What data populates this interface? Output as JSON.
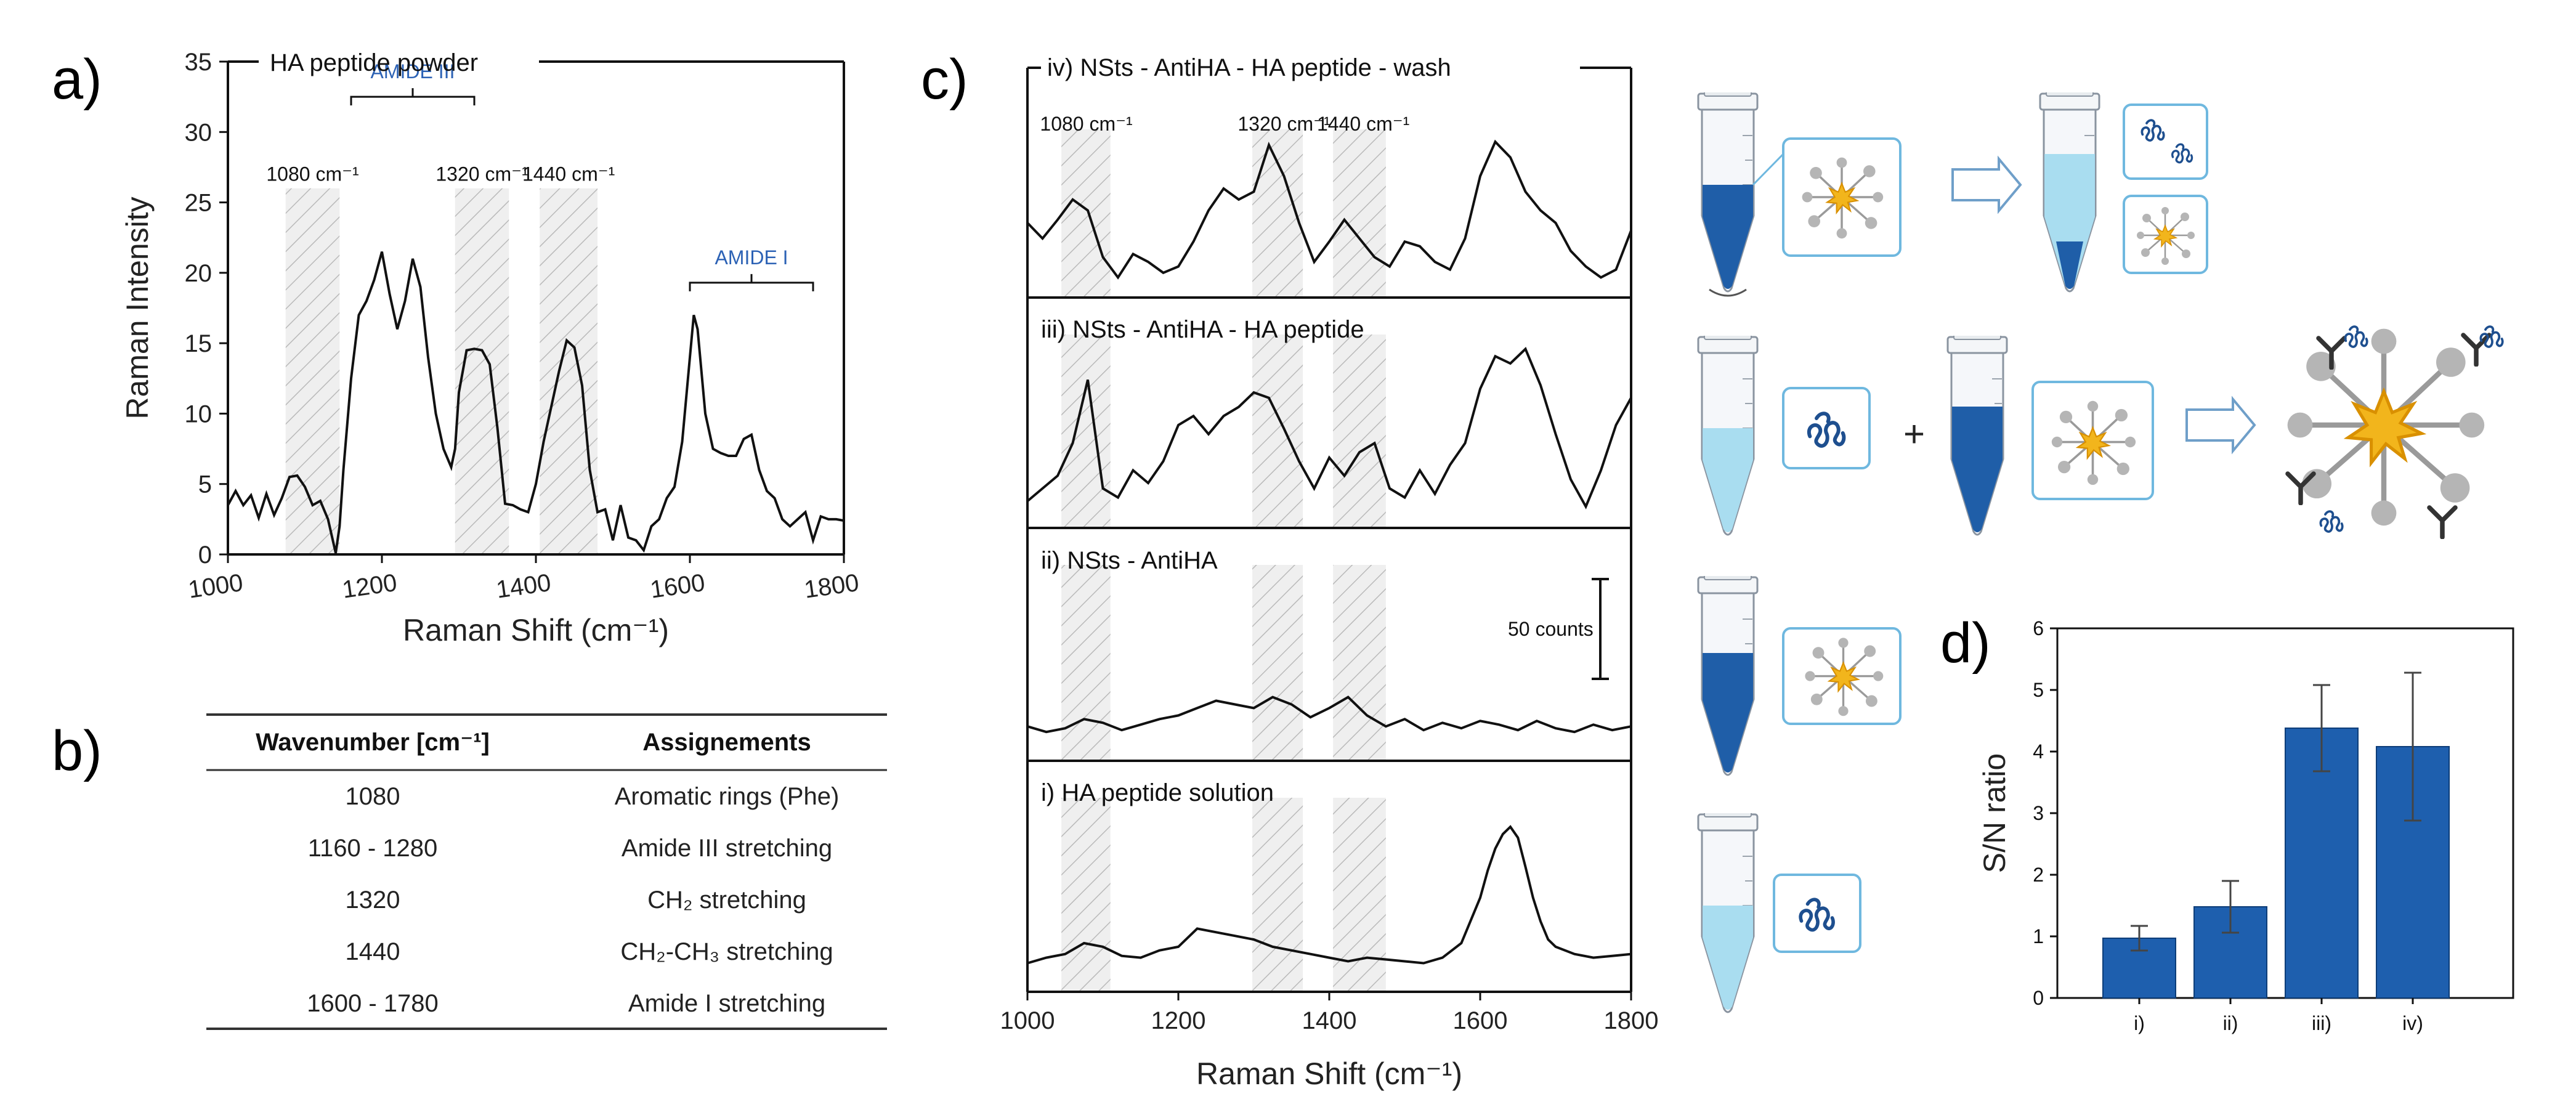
{
  "panels": {
    "a": "a)",
    "b": "b)",
    "c": "c)",
    "d": "d)"
  },
  "chart_data": [
    {
      "id": "a",
      "type": "line",
      "title": "HA peptide powder",
      "xlabel": "Raman Shift (cm⁻¹)",
      "ylabel": "Raman Intensity",
      "xlim": [
        1000,
        1800
      ],
      "ylim": [
        0,
        35
      ],
      "xticks": [
        1000,
        1200,
        1400,
        1600,
        1800
      ],
      "yticks": [
        0,
        5,
        10,
        15,
        20,
        25,
        30,
        35
      ],
      "bands": [
        {
          "label": "1080 cm⁻¹",
          "x0": 1075,
          "x1": 1145
        },
        {
          "label": "1320 cm⁻¹",
          "x0": 1295,
          "x1": 1365
        },
        {
          "label": "1440 cm⁻¹",
          "x0": 1405,
          "x1": 1480
        }
      ],
      "annotations": [
        {
          "label": "AMIDE III",
          "x0": 1160,
          "x1": 1320
        },
        {
          "label": "AMIDE I",
          "x0": 1600,
          "x1": 1760
        }
      ],
      "series": [
        {
          "name": "HA peptide powder",
          "x": [
            1000,
            1010,
            1020,
            1030,
            1040,
            1050,
            1060,
            1070,
            1080,
            1090,
            1100,
            1110,
            1120,
            1130,
            1140,
            1145,
            1150,
            1160,
            1170,
            1180,
            1190,
            1200,
            1210,
            1220,
            1230,
            1240,
            1250,
            1260,
            1270,
            1280,
            1290,
            1295,
            1300,
            1310,
            1320,
            1330,
            1340,
            1350,
            1360,
            1370,
            1380,
            1390,
            1400,
            1410,
            1420,
            1430,
            1440,
            1450,
            1460,
            1470,
            1480,
            1490,
            1500,
            1510,
            1520,
            1530,
            1540,
            1550,
            1560,
            1570,
            1580,
            1590,
            1600,
            1605,
            1610,
            1620,
            1630,
            1640,
            1650,
            1660,
            1670,
            1680,
            1690,
            1700,
            1710,
            1720,
            1730,
            1740,
            1750,
            1760,
            1770,
            1780,
            1790,
            1800
          ],
          "y": [
            3.5,
            4.5,
            3.5,
            4.2,
            2.6,
            4.3,
            2.8,
            4.0,
            5.5,
            5.6,
            4.8,
            3.5,
            3.8,
            2.5,
            0.1,
            2.0,
            6.0,
            12.5,
            17.0,
            18.0,
            19.5,
            21.5,
            18.5,
            16.0,
            18.0,
            21.0,
            19.0,
            14.0,
            10.0,
            7.5,
            6.2,
            7.5,
            11.5,
            14.5,
            14.6,
            14.5,
            13.5,
            9.0,
            3.6,
            3.5,
            3.2,
            3.0,
            5.0,
            8.0,
            10.5,
            13.0,
            15.2,
            14.7,
            12.0,
            6.0,
            3.0,
            3.2,
            1.0,
            3.5,
            1.2,
            1.0,
            0.3,
            2.0,
            2.5,
            4.0,
            4.8,
            8.0,
            14.0,
            17.0,
            16.0,
            10.0,
            7.5,
            7.2,
            7.0,
            7.0,
            8.2,
            8.5,
            6.0,
            4.5,
            4.0,
            2.5,
            2.0,
            2.5,
            3.0,
            1.0,
            2.7,
            2.5,
            2.5,
            2.4
          ]
        }
      ]
    },
    {
      "id": "c",
      "type": "line",
      "xlabel": "Raman Shift (cm⁻¹)",
      "xlim": [
        1000,
        1800
      ],
      "xticks": [
        1000,
        1200,
        1400,
        1600,
        1800
      ],
      "band_labels": [
        "1080 cm⁻¹",
        "1320 cm⁻¹",
        "1440 cm⁻¹"
      ],
      "scale_bar": "50 counts",
      "stack": [
        {
          "name": "iv) NSts - AntiHA - HA peptide - wash",
          "x": [
            1000,
            1020,
            1040,
            1060,
            1080,
            1100,
            1120,
            1140,
            1160,
            1180,
            1200,
            1220,
            1240,
            1260,
            1280,
            1300,
            1320,
            1340,
            1360,
            1380,
            1400,
            1420,
            1440,
            1460,
            1480,
            1500,
            1520,
            1540,
            1560,
            1580,
            1600,
            1620,
            1640,
            1660,
            1680,
            1700,
            1720,
            1740,
            1760,
            1780,
            1800
          ],
          "y": [
            0.4,
            0.3,
            0.42,
            0.55,
            0.48,
            0.18,
            0.05,
            0.2,
            0.15,
            0.08,
            0.12,
            0.28,
            0.48,
            0.62,
            0.55,
            0.6,
            0.9,
            0.7,
            0.4,
            0.15,
            0.28,
            0.42,
            0.3,
            0.18,
            0.12,
            0.28,
            0.25,
            0.15,
            0.1,
            0.3,
            0.7,
            0.92,
            0.82,
            0.6,
            0.48,
            0.4,
            0.22,
            0.12,
            0.05,
            0.1,
            0.35
          ]
        },
        {
          "name": "iii) NSts - AntiHA - HA peptide",
          "x": [
            1000,
            1020,
            1040,
            1060,
            1080,
            1100,
            1120,
            1140,
            1160,
            1180,
            1200,
            1220,
            1240,
            1260,
            1280,
            1300,
            1320,
            1340,
            1360,
            1380,
            1400,
            1420,
            1440,
            1460,
            1480,
            1500,
            1520,
            1540,
            1560,
            1580,
            1600,
            1620,
            1640,
            1660,
            1680,
            1700,
            1720,
            1740,
            1760,
            1780,
            1800
          ],
          "y": [
            0.08,
            0.15,
            0.22,
            0.4,
            0.75,
            0.15,
            0.1,
            0.25,
            0.18,
            0.3,
            0.5,
            0.55,
            0.45,
            0.55,
            0.6,
            0.68,
            0.65,
            0.48,
            0.3,
            0.15,
            0.32,
            0.22,
            0.35,
            0.4,
            0.15,
            0.1,
            0.25,
            0.12,
            0.28,
            0.4,
            0.7,
            0.88,
            0.84,
            0.92,
            0.72,
            0.45,
            0.2,
            0.05,
            0.25,
            0.5,
            0.65
          ]
        },
        {
          "name": "ii) NSts - AntiHA",
          "x": [
            1000,
            1025,
            1050,
            1075,
            1100,
            1125,
            1150,
            1175,
            1200,
            1225,
            1250,
            1275,
            1300,
            1325,
            1350,
            1375,
            1400,
            1425,
            1450,
            1475,
            1500,
            1525,
            1550,
            1575,
            1600,
            1625,
            1650,
            1675,
            1700,
            1725,
            1750,
            1775,
            1800
          ],
          "y": [
            0.12,
            0.09,
            0.11,
            0.16,
            0.14,
            0.1,
            0.13,
            0.16,
            0.18,
            0.22,
            0.26,
            0.24,
            0.22,
            0.28,
            0.24,
            0.17,
            0.22,
            0.28,
            0.18,
            0.12,
            0.16,
            0.1,
            0.14,
            0.11,
            0.15,
            0.13,
            0.1,
            0.15,
            0.11,
            0.09,
            0.13,
            0.1,
            0.12
          ]
        },
        {
          "name": "i) HA peptide solution",
          "x": [
            1000,
            1025,
            1050,
            1075,
            1100,
            1125,
            1150,
            1175,
            1200,
            1225,
            1250,
            1275,
            1300,
            1325,
            1350,
            1375,
            1400,
            1425,
            1450,
            1475,
            1500,
            1525,
            1550,
            1575,
            1600,
            1610,
            1620,
            1630,
            1640,
            1650,
            1660,
            1670,
            1680,
            1690,
            1700,
            1725,
            1750,
            1775,
            1800
          ],
          "y": [
            0.09,
            0.12,
            0.14,
            0.2,
            0.18,
            0.13,
            0.12,
            0.16,
            0.18,
            0.28,
            0.26,
            0.24,
            0.22,
            0.18,
            0.16,
            0.14,
            0.12,
            0.1,
            0.12,
            0.11,
            0.1,
            0.09,
            0.12,
            0.2,
            0.45,
            0.6,
            0.72,
            0.8,
            0.84,
            0.78,
            0.62,
            0.45,
            0.32,
            0.22,
            0.18,
            0.14,
            0.12,
            0.13,
            0.14
          ]
        }
      ]
    },
    {
      "id": "d",
      "type": "bar",
      "ylabel": "S/N ratio",
      "categories": [
        "i)",
        "ii)",
        "iii)",
        "iv)"
      ],
      "values": [
        0.97,
        1.48,
        4.38,
        4.08
      ],
      "errors": [
        0.2,
        0.42,
        0.7,
        1.2
      ],
      "ylim": [
        0,
        6
      ],
      "yticks": [
        0,
        1,
        2,
        3,
        4,
        5,
        6
      ]
    }
  ],
  "table": {
    "headers": [
      "Wavenumber [cm⁻¹]",
      "Assignements"
    ],
    "rows": [
      [
        "1080",
        "Aromatic rings (Phe)"
      ],
      [
        "1160 - 1280",
        "Amide III stretching"
      ],
      [
        "1320",
        "CH₂ stretching"
      ],
      [
        "1440",
        "CH₂-CH₃ stretching"
      ],
      [
        "1600 - 1780",
        "Amide I stretching"
      ]
    ]
  },
  "colors": {
    "bar": "#1e5fae",
    "liquid_dark": "#1f5ea8",
    "liquid_light": "#a9ddf0",
    "amide_text": "#2c62b5",
    "icon_blue": "#1e4f8f",
    "star": "#f2b51c"
  }
}
